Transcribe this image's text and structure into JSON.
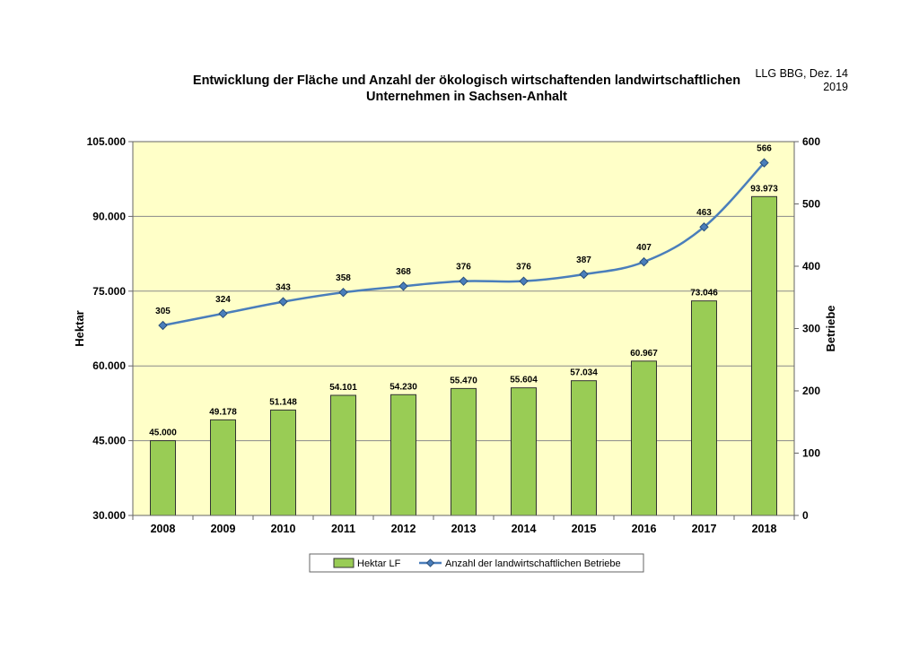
{
  "source": {
    "line1": "LLG BBG, Dez. 14",
    "line2": "2019"
  },
  "chart_data": {
    "type": "bar",
    "title_line1": "Entwicklung der Fläche und Anzahl der ökologisch wirtschaftenden landwirtschaftlichen",
    "title_line2": "Unternehmen in Sachsen-Anhalt",
    "categories": [
      "2008",
      "2009",
      "2010",
      "2011",
      "2012",
      "2013",
      "2014",
      "2015",
      "2016",
      "2017",
      "2018"
    ],
    "series": [
      {
        "name": "Hektar LF",
        "type": "bar",
        "axis": "left",
        "values": [
          45000,
          49178,
          51148,
          54101,
          54230,
          55470,
          55604,
          57034,
          60967,
          73046,
          93973
        ],
        "labels": [
          "45.000",
          "49.178",
          "51.148",
          "54.101",
          "54.230",
          "55.470",
          "55.604",
          "57.034",
          "60.967",
          "73.046",
          "93.973"
        ],
        "color": "#99CC55"
      },
      {
        "name": "Anzahl der landwirtschaftlichen Betriebe",
        "type": "line",
        "axis": "right",
        "values": [
          305,
          324,
          343,
          358,
          368,
          376,
          376,
          387,
          407,
          463,
          566
        ],
        "labels": [
          "305",
          "324",
          "343",
          "358",
          "368",
          "376",
          "376",
          "387",
          "407",
          "463",
          "566"
        ],
        "color": "#4A7EBB"
      }
    ],
    "ylabel_left": "Hektar",
    "ylabel_right": "Betriebe",
    "ylim_left": [
      30000,
      105000
    ],
    "ylim_right": [
      0,
      600
    ],
    "yticks_left": [
      {
        "value": 30000,
        "label": "30.000"
      },
      {
        "value": 45000,
        "label": "45.000"
      },
      {
        "value": 60000,
        "label": "60.000"
      },
      {
        "value": 75000,
        "label": "75.000"
      },
      {
        "value": 90000,
        "label": "90.000"
      },
      {
        "value": 105000,
        "label": "105.000"
      }
    ],
    "yticks_right": [
      {
        "value": 0,
        "label": "0"
      },
      {
        "value": 100,
        "label": "100"
      },
      {
        "value": 200,
        "label": "200"
      },
      {
        "value": 300,
        "label": "300"
      },
      {
        "value": 400,
        "label": "400"
      },
      {
        "value": 500,
        "label": "500"
      },
      {
        "value": 600,
        "label": "600"
      }
    ],
    "grid": true,
    "plot_background": "#FFFFC8",
    "legend_position": "bottom"
  }
}
